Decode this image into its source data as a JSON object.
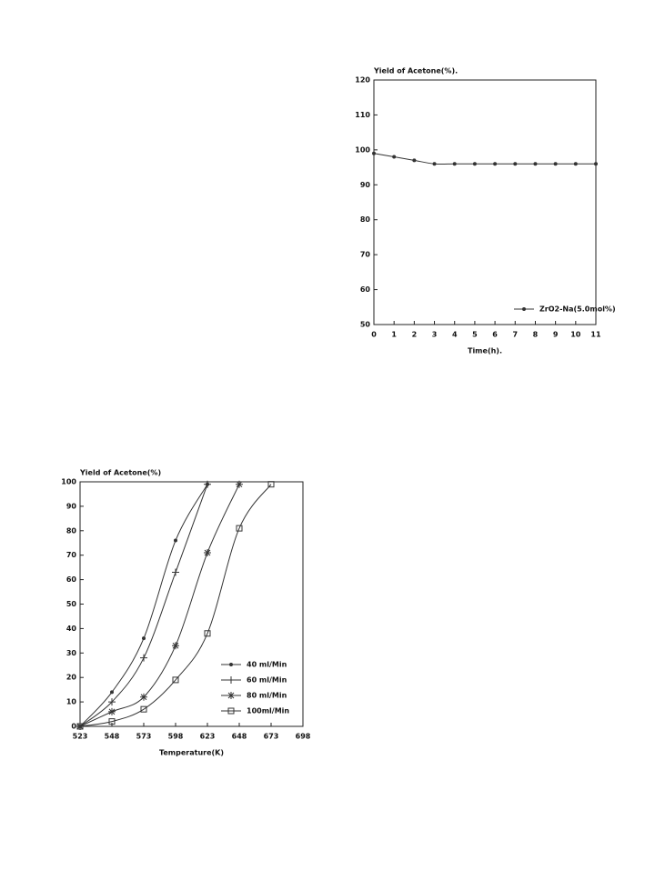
{
  "chart_data": [
    {
      "type": "line",
      "y_label": "Yield of Acetone(%).",
      "x_label": "Time(h).",
      "x": [
        0,
        1,
        2,
        3,
        4,
        5,
        6,
        7,
        8,
        9,
        10,
        11
      ],
      "series": [
        {
          "name": "ZrO2-Na(5.0mol%)",
          "color": "#333333",
          "marker": "dot",
          "values": [
            99,
            98,
            97,
            96,
            96,
            96,
            96,
            96,
            96,
            96,
            96,
            96
          ]
        }
      ],
      "xlim": [
        0,
        11
      ],
      "xticks": [
        0,
        1,
        2,
        3,
        4,
        5,
        6,
        7,
        8,
        9,
        10,
        11
      ],
      "ylim": [
        50,
        120
      ],
      "yticks": [
        50,
        60,
        70,
        80,
        90,
        100,
        110,
        120
      ],
      "legend": "lower right"
    },
    {
      "type": "line",
      "y_label": "Yield of Acetone(%)",
      "x_label": "Temperature(K)",
      "series": [
        {
          "name": "40 ml/Min",
          "color": "#333333",
          "marker": "dot",
          "x": [
            523,
            548,
            573,
            598,
            623
          ],
          "values": [
            0,
            14,
            36,
            76,
            99
          ]
        },
        {
          "name": "60 ml/Min",
          "color": "#333333",
          "marker": "plus",
          "x": [
            523,
            548,
            573,
            598,
            623
          ],
          "values": [
            0,
            10,
            28,
            63,
            99
          ]
        },
        {
          "name": "80 ml/Min",
          "color": "#333333",
          "marker": "asterisk",
          "x": [
            523,
            548,
            573,
            598,
            623,
            648
          ],
          "values": [
            0,
            6,
            12,
            33,
            71,
            99
          ]
        },
        {
          "name": "100ml/Min",
          "color": "#333333",
          "marker": "square",
          "x": [
            523,
            548,
            573,
            598,
            623,
            648,
            673
          ],
          "values": [
            0,
            2,
            7,
            19,
            38,
            81,
            99
          ]
        }
      ],
      "xlim": [
        523,
        698
      ],
      "xticks": [
        523,
        548,
        573,
        598,
        623,
        648,
        673,
        698
      ],
      "ylim": [
        0,
        100
      ],
      "yticks": [
        0,
        10,
        20,
        30,
        40,
        50,
        60,
        70,
        80,
        90,
        100
      ],
      "legend": "lower right"
    }
  ]
}
